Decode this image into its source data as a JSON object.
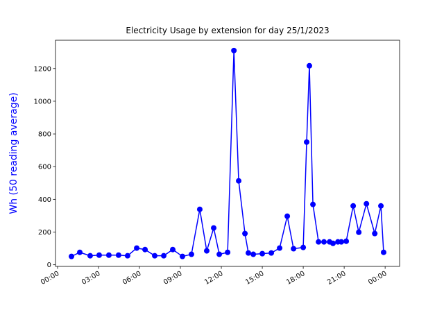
{
  "chart_data": {
    "type": "line",
    "title": "Electricity Usage by extension for day 25/1/2023",
    "ylabel": "Wh (50 reading average)",
    "xlim": [
      -0.15,
      25.06
    ],
    "ylim": [
      -10,
      1373
    ],
    "xticks": [
      {
        "value": 0,
        "label": "00:00"
      },
      {
        "value": 3,
        "label": "03:00"
      },
      {
        "value": 6,
        "label": "06:00"
      },
      {
        "value": 9,
        "label": "09:00"
      },
      {
        "value": 12,
        "label": "12:00"
      },
      {
        "value": 15,
        "label": "15:00"
      },
      {
        "value": 18,
        "label": "18:00"
      },
      {
        "value": 21,
        "label": "21:00"
      },
      {
        "value": 24,
        "label": "00:00"
      }
    ],
    "yticks": [
      0,
      200,
      400,
      600,
      800,
      1000,
      1200
    ],
    "x": [
      1.02,
      1.63,
      2.39,
      3.05,
      3.76,
      4.47,
      5.13,
      5.8,
      6.41,
      7.12,
      7.78,
      8.44,
      9.15,
      9.81,
      10.42,
      10.93,
      11.44,
      11.85,
      12.46,
      12.92,
      13.27,
      13.73,
      13.98,
      14.34,
      15.0,
      15.66,
      16.27,
      16.83,
      17.29,
      18.0,
      18.25,
      18.45,
      18.71,
      19.12,
      19.52,
      19.93,
      20.18,
      20.54,
      20.79,
      21.15,
      21.66,
      22.07,
      22.63,
      23.24,
      23.69,
      23.89
    ],
    "series": [
      {
        "color": "#0000ff",
        "values": [
          51,
          76,
          55,
          59,
          59,
          59,
          55,
          102,
          93,
          55,
          55,
          93,
          51,
          64,
          339,
          85,
          225,
          64,
          76,
          1310,
          513,
          191,
          72,
          64,
          68,
          72,
          102,
          297,
          98,
          106,
          750,
          1217,
          369,
          140,
          140,
          140,
          131,
          140,
          140,
          144,
          360,
          199,
          373,
          191,
          360,
          76
        ]
      }
    ]
  }
}
